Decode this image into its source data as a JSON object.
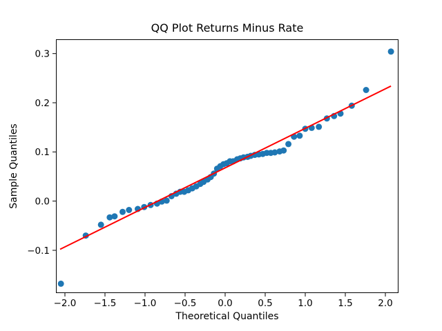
{
  "chart_data": {
    "type": "scatter",
    "title": "QQ Plot Returns Minus Rate",
    "xlabel": "Theoretical Quantiles",
    "ylabel": "Sample Quantiles",
    "xlim": [
      -2.112,
      2.164
    ],
    "ylim": [
      -0.187,
      0.329
    ],
    "x_ticks": [
      -2.0,
      -1.5,
      -1.0,
      -0.5,
      0.0,
      0.5,
      1.0,
      1.5,
      2.0
    ],
    "x_tick_labels": [
      "−2.0",
      "−1.5",
      "−1.0",
      "−0.5",
      "0.0",
      "0.5",
      "1.0",
      "1.5",
      "2.0"
    ],
    "y_ticks": [
      0.3,
      0.2,
      0.1,
      0.0,
      -0.1
    ],
    "y_tick_labels": [
      "0.3",
      "0.2",
      "0.1",
      "0.0",
      "−0.1"
    ],
    "grid": false,
    "legend": null,
    "marker_color": "#1f77b4",
    "marker_radius": 4.5,
    "line_color": "#ff0000",
    "line_width": 2,
    "fit_line": {
      "x1": -2.06,
      "y1": -0.098,
      "x2": 2.07,
      "y2": 0.234
    },
    "points": [
      [
        -2.05,
        -0.168
      ],
      [
        -1.74,
        -0.07
      ],
      [
        -1.55,
        -0.048
      ],
      [
        -1.44,
        -0.033
      ],
      [
        -1.38,
        -0.031
      ],
      [
        -1.28,
        -0.022
      ],
      [
        -1.2,
        -0.018
      ],
      [
        -1.09,
        -0.016
      ],
      [
        -1.01,
        -0.012
      ],
      [
        -0.93,
        -0.008
      ],
      [
        -0.85,
        -0.005
      ],
      [
        -0.79,
        -0.001
      ],
      [
        -0.73,
        0.001
      ],
      [
        -0.67,
        0.01
      ],
      [
        -0.61,
        0.015
      ],
      [
        -0.56,
        0.019
      ],
      [
        -0.51,
        0.019
      ],
      [
        -0.46,
        0.022
      ],
      [
        -0.41,
        0.026
      ],
      [
        -0.36,
        0.03
      ],
      [
        -0.31,
        0.035
      ],
      [
        -0.27,
        0.039
      ],
      [
        -0.22,
        0.044
      ],
      [
        -0.18,
        0.049
      ],
      [
        -0.14,
        0.056
      ],
      [
        -0.1,
        0.066
      ],
      [
        -0.06,
        0.071
      ],
      [
        -0.02,
        0.075
      ],
      [
        0.02,
        0.077
      ],
      [
        0.06,
        0.081
      ],
      [
        0.1,
        0.081
      ],
      [
        0.15,
        0.085
      ],
      [
        0.19,
        0.087
      ],
      [
        0.23,
        0.089
      ],
      [
        0.28,
        0.09
      ],
      [
        0.32,
        0.092
      ],
      [
        0.37,
        0.094
      ],
      [
        0.42,
        0.095
      ],
      [
        0.47,
        0.096
      ],
      [
        0.52,
        0.098
      ],
      [
        0.57,
        0.098
      ],
      [
        0.62,
        0.099
      ],
      [
        0.68,
        0.101
      ],
      [
        0.73,
        0.103
      ],
      [
        0.79,
        0.116
      ],
      [
        0.86,
        0.131
      ],
      [
        0.93,
        0.133
      ],
      [
        1.0,
        0.147
      ],
      [
        1.08,
        0.149
      ],
      [
        1.17,
        0.151
      ],
      [
        1.27,
        0.168
      ],
      [
        1.36,
        0.173
      ],
      [
        1.44,
        0.178
      ],
      [
        1.58,
        0.194
      ],
      [
        1.76,
        0.226
      ],
      [
        2.07,
        0.304
      ]
    ]
  }
}
